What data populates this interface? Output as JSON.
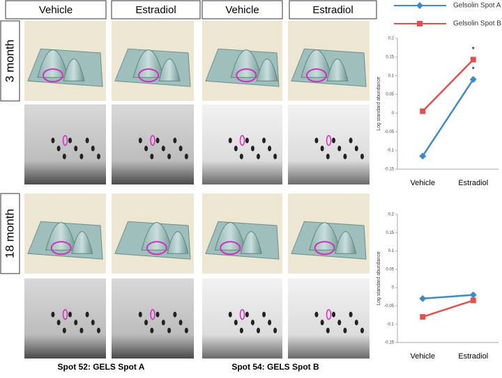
{
  "columns": [
    "Vehicle",
    "Estradiol",
    "Vehicle",
    "Estradiol"
  ],
  "rows": [
    "3 month",
    "18 month"
  ],
  "captions": [
    "Spot 52: GELS Spot A",
    "Spot 54: GELS Spot B"
  ],
  "chart_data": [
    {
      "type": "line",
      "y_label": "Log standard abundance",
      "categories": [
        "Vehicle",
        "Estradiol"
      ],
      "series": [
        {
          "name": "Gelsolin Spot A",
          "color": "#3d8ac4",
          "marker": "diamond",
          "values": [
            -0.115,
            0.09
          ]
        },
        {
          "name": "Gelsolin Spot B",
          "color": "#e0504f",
          "marker": "square",
          "values": [
            0.005,
            0.143
          ]
        }
      ],
      "annotations": [
        "*",
        "*"
      ],
      "ylim": [
        -0.15,
        0.2
      ],
      "yticks": [
        -0.15,
        -0.1,
        -0.05,
        0,
        0.05,
        0.1,
        0.15,
        0.2
      ]
    },
    {
      "type": "line",
      "y_label": "Log standard abundance",
      "categories": [
        "Vehicle",
        "Estradiol"
      ],
      "series": [
        {
          "name": "Gelsolin Spot A",
          "color": "#3d8ac4",
          "marker": "diamond",
          "values": [
            -0.03,
            -0.02
          ]
        },
        {
          "name": "Gelsolin Spot B",
          "color": "#e0504f",
          "marker": "square",
          "values": [
            -0.08,
            -0.035
          ]
        }
      ],
      "ylim": [
        -0.15,
        0.2
      ],
      "yticks": [
        -0.15,
        -0.1,
        -0.05,
        0,
        0.05,
        0.1,
        0.15,
        0.2
      ]
    }
  ]
}
